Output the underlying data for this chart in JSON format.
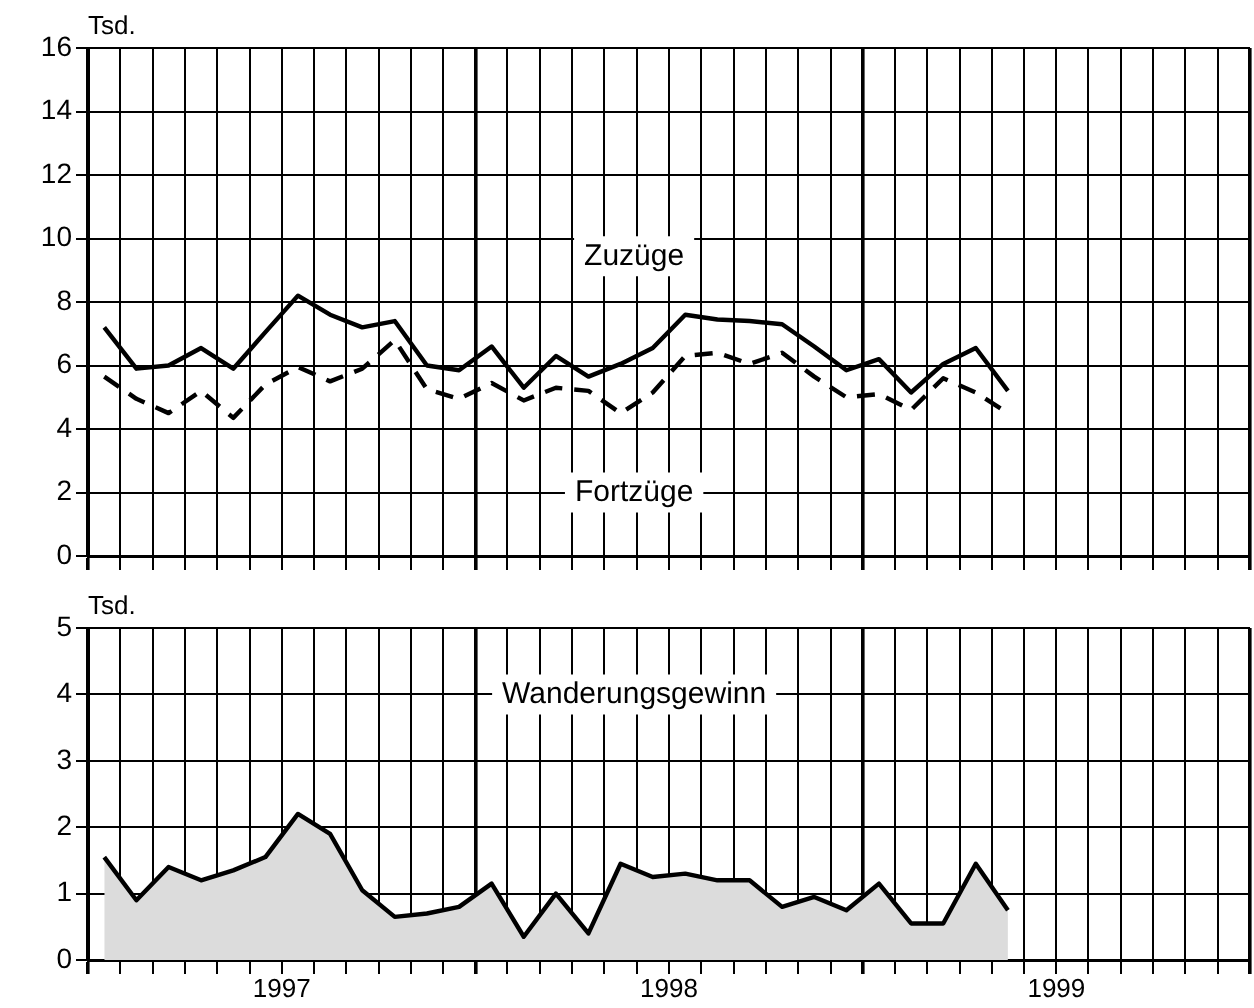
{
  "chart_data": [
    {
      "type": "line",
      "ylabel": "Tsd.",
      "xlim": [
        1997,
        2000
      ],
      "ylim": [
        0,
        16
      ],
      "yticks": [
        0,
        2,
        4,
        6,
        8,
        10,
        12,
        14,
        16
      ],
      "xticks": [
        {
          "value": 1997,
          "label": null
        },
        {
          "value": 1997.083,
          "label": null
        },
        {
          "value": 1997.167,
          "label": null
        },
        {
          "value": 1997.25,
          "label": null
        },
        {
          "value": 1997.333,
          "label": null
        },
        {
          "value": 1997.417,
          "label": null
        },
        {
          "value": 1997.5,
          "label": null
        },
        {
          "value": 1997.583,
          "label": null
        },
        {
          "value": 1997.667,
          "label": null
        },
        {
          "value": 1997.75,
          "label": null
        },
        {
          "value": 1997.833,
          "label": null
        },
        {
          "value": 1997.917,
          "label": null
        },
        {
          "value": 1998,
          "label": null
        },
        {
          "value": 1998.083,
          "label": null
        },
        {
          "value": 1998.167,
          "label": null
        },
        {
          "value": 1998.25,
          "label": null
        },
        {
          "value": 1998.333,
          "label": null
        },
        {
          "value": 1998.417,
          "label": null
        },
        {
          "value": 1998.5,
          "label": null
        },
        {
          "value": 1998.583,
          "label": null
        },
        {
          "value": 1998.667,
          "label": null
        },
        {
          "value": 1998.75,
          "label": null
        },
        {
          "value": 1998.833,
          "label": null
        },
        {
          "value": 1998.917,
          "label": null
        },
        {
          "value": 1999,
          "label": null
        },
        {
          "value": 1999.083,
          "label": null
        },
        {
          "value": 1999.167,
          "label": null
        },
        {
          "value": 1999.25,
          "label": null
        },
        {
          "value": 1999.333,
          "label": null
        },
        {
          "value": 1999.417,
          "label": null
        },
        {
          "value": 1999.5,
          "label": null
        },
        {
          "value": 1999.583,
          "label": null
        },
        {
          "value": 1999.667,
          "label": null
        },
        {
          "value": 1999.75,
          "label": null
        },
        {
          "value": 1999.833,
          "label": null
        },
        {
          "value": 1999.917,
          "label": null
        },
        {
          "value": 2000,
          "label": null
        }
      ],
      "x": [
        1997.042,
        1997.125,
        1997.208,
        1997.292,
        1997.375,
        1997.458,
        1997.542,
        1997.625,
        1997.708,
        1997.792,
        1997.875,
        1997.958,
        1998.042,
        1998.125,
        1998.208,
        1998.292,
        1998.375,
        1998.458,
        1998.542,
        1998.625,
        1998.708,
        1998.792,
        1998.875,
        1998.958,
        1999.042,
        1999.125,
        1999.208,
        1999.292,
        1999.375
      ],
      "series": [
        {
          "name": "Zuzüge",
          "color": "#000000",
          "line_style": "solid",
          "values": [
            7.2,
            5.9,
            6.0,
            6.55,
            5.9,
            7.05,
            8.2,
            7.6,
            7.2,
            7.4,
            6.0,
            5.85,
            6.6,
            5.3,
            6.3,
            5.65,
            6.05,
            6.55,
            7.6,
            7.45,
            7.4,
            7.3,
            6.6,
            5.85,
            6.2,
            5.15,
            6.05,
            6.55,
            5.2
          ]
        },
        {
          "name": "Fortzüge",
          "color": "#000000",
          "line_style": "dashed",
          "values": [
            5.65,
            4.95,
            4.5,
            5.2,
            4.35,
            5.4,
            5.95,
            5.5,
            5.9,
            6.8,
            5.25,
            4.95,
            5.45,
            4.9,
            5.3,
            5.2,
            4.5,
            5.15,
            6.3,
            6.4,
            6.05,
            6.4,
            5.65,
            5.0,
            5.1,
            4.6,
            5.6,
            5.15,
            4.5
          ]
        }
      ],
      "marker": "none",
      "grid": true,
      "legend": false,
      "tick_labels": "y"
    },
    {
      "type": "area",
      "ylabel": "Tsd.",
      "xlim": [
        1997,
        2000
      ],
      "ylim": [
        0,
        5
      ],
      "yticks": [
        0,
        1,
        2,
        3,
        4,
        5
      ],
      "xticks": [
        {
          "value": 1997,
          "label": null
        },
        {
          "value": 1997.083,
          "label": null
        },
        {
          "value": 1997.167,
          "label": null
        },
        {
          "value": 1997.25,
          "label": null
        },
        {
          "value": 1997.333,
          "label": null
        },
        {
          "value": 1997.417,
          "label": null
        },
        {
          "value": 1997.5,
          "label": "1997"
        },
        {
          "value": 1997.583,
          "label": null
        },
        {
          "value": 1997.667,
          "label": null
        },
        {
          "value": 1997.75,
          "label": null
        },
        {
          "value": 1997.833,
          "label": null
        },
        {
          "value": 1997.917,
          "label": null
        },
        {
          "value": 1998,
          "label": null
        },
        {
          "value": 1998.083,
          "label": null
        },
        {
          "value": 1998.167,
          "label": null
        },
        {
          "value": 1998.25,
          "label": null
        },
        {
          "value": 1998.333,
          "label": null
        },
        {
          "value": 1998.417,
          "label": null
        },
        {
          "value": 1998.5,
          "label": "1998"
        },
        {
          "value": 1998.583,
          "label": null
        },
        {
          "value": 1998.667,
          "label": null
        },
        {
          "value": 1998.75,
          "label": null
        },
        {
          "value": 1998.833,
          "label": null
        },
        {
          "value": 1998.917,
          "label": null
        },
        {
          "value": 1999,
          "label": null
        },
        {
          "value": 1999.083,
          "label": null
        },
        {
          "value": 1999.167,
          "label": null
        },
        {
          "value": 1999.25,
          "label": null
        },
        {
          "value": 1999.333,
          "label": null
        },
        {
          "value": 1999.417,
          "label": null
        },
        {
          "value": 1999.5,
          "label": "1999"
        },
        {
          "value": 1999.583,
          "label": null
        },
        {
          "value": 1999.667,
          "label": null
        },
        {
          "value": 1999.75,
          "label": null
        },
        {
          "value": 1999.833,
          "label": null
        },
        {
          "value": 1999.917,
          "label": null
        },
        {
          "value": 2000,
          "label": null
        }
      ],
      "x": [
        1997.042,
        1997.125,
        1997.208,
        1997.292,
        1997.375,
        1997.458,
        1997.542,
        1997.625,
        1997.708,
        1997.792,
        1997.875,
        1997.958,
        1998.042,
        1998.125,
        1998.208,
        1998.292,
        1998.375,
        1998.458,
        1998.542,
        1998.625,
        1998.708,
        1998.792,
        1998.875,
        1998.958,
        1999.042,
        1999.125,
        1999.208,
        1999.292,
        1999.375
      ],
      "series": [
        {
          "name": "Wanderungsgewinn",
          "color": "#000000",
          "values": [
            1.55,
            0.9,
            1.4,
            1.2,
            1.35,
            1.55,
            2.2,
            1.9,
            1.05,
            0.65,
            0.7,
            0.8,
            1.15,
            0.35,
            1.0,
            0.4,
            1.45,
            1.25,
            1.3,
            1.2,
            1.2,
            0.8,
            0.95,
            0.75,
            1.15,
            0.55,
            0.55,
            1.45,
            0.75
          ]
        }
      ],
      "marker": "none",
      "grid": true,
      "legend": false
    }
  ]
}
